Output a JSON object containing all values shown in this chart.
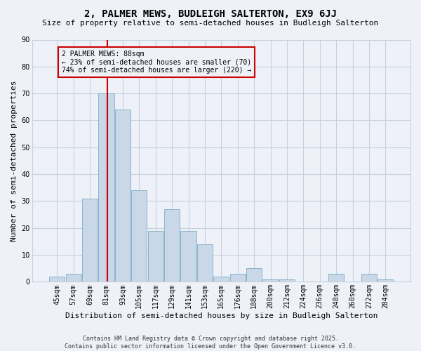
{
  "title": "2, PALMER MEWS, BUDLEIGH SALTERTON, EX9 6JJ",
  "subtitle": "Size of property relative to semi-detached houses in Budleigh Salterton",
  "xlabel": "Distribution of semi-detached houses by size in Budleigh Salterton",
  "ylabel": "Number of semi-detached properties",
  "categories": [
    "45sqm",
    "57sqm",
    "69sqm",
    "81sqm",
    "93sqm",
    "105sqm",
    "117sqm",
    "129sqm",
    "141sqm",
    "153sqm",
    "165sqm",
    "176sqm",
    "188sqm",
    "200sqm",
    "212sqm",
    "224sqm",
    "236sqm",
    "248sqm",
    "260sqm",
    "272sqm",
    "284sqm"
  ],
  "values": [
    2,
    3,
    31,
    70,
    64,
    34,
    19,
    27,
    19,
    14,
    2,
    3,
    5,
    1,
    1,
    0,
    0,
    3,
    0,
    3,
    1
  ],
  "bar_color": "#c8d8e8",
  "bar_edge_color": "#8ab4cc",
  "grid_color": "#c8d0dc",
  "bg_color": "#eef2f8",
  "vline_color": "#cc0000",
  "vline_x_data": 3.08,
  "annotation_text": "2 PALMER MEWS: 88sqm\n← 23% of semi-detached houses are smaller (70)\n74% of semi-detached houses are larger (220) →",
  "annotation_box_color": "#cc0000",
  "ylim": [
    0,
    90
  ],
  "yticks": [
    0,
    10,
    20,
    30,
    40,
    50,
    60,
    70,
    80,
    90
  ],
  "footer": "Contains HM Land Registry data © Crown copyright and database right 2025.\nContains public sector information licensed under the Open Government Licence v3.0.",
  "title_fontsize": 10,
  "subtitle_fontsize": 8,
  "xlabel_fontsize": 8,
  "ylabel_fontsize": 8,
  "tick_fontsize": 7,
  "footer_fontsize": 6,
  "ann_fontsize": 7
}
